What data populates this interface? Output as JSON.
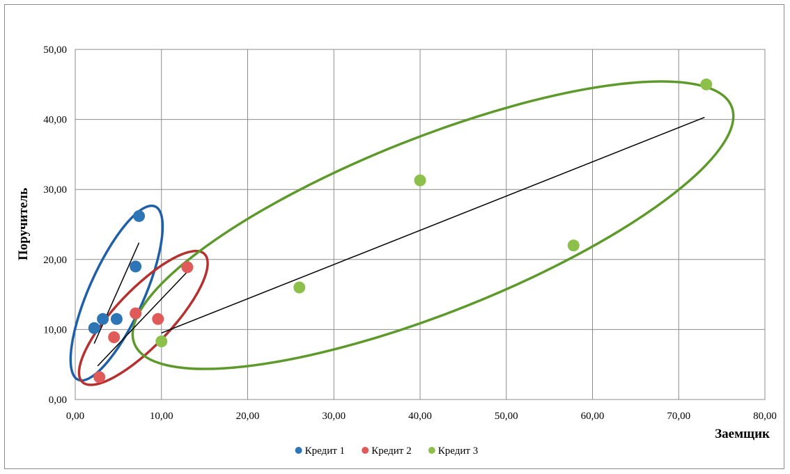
{
  "chart_data": {
    "type": "scatter",
    "title": "",
    "xlabel": "Заемщик",
    "ylabel": "Поручитель",
    "xlim": [
      0,
      80
    ],
    "ylim": [
      0,
      50
    ],
    "x_ticks": [
      "0,00",
      "10,00",
      "20,00",
      "30,00",
      "40,00",
      "50,00",
      "60,00",
      "70,00",
      "80,00"
    ],
    "y_ticks": [
      "0,00",
      "10,00",
      "20,00",
      "30,00",
      "40,00",
      "50,00"
    ],
    "x_tick_values": [
      0,
      10,
      20,
      30,
      40,
      50,
      60,
      70,
      80
    ],
    "y_tick_values": [
      0,
      10,
      20,
      30,
      40,
      50
    ],
    "grid": true,
    "legend_position": "bottom",
    "series": [
      {
        "name": "Кредит 1",
        "color": "#2e75b6",
        "points": [
          [
            2.2,
            10.2
          ],
          [
            3.2,
            11.5
          ],
          [
            4.8,
            11.5
          ],
          [
            7.0,
            19.0
          ],
          [
            7.4,
            26.2
          ]
        ],
        "trendline": [
          [
            2.2,
            8.0
          ],
          [
            7.4,
            22.4
          ]
        ],
        "ellipse_color": "#1f5fa8"
      },
      {
        "name": "Кредит 2",
        "color": "#e05a5a",
        "points": [
          [
            2.8,
            3.2
          ],
          [
            4.5,
            8.9
          ],
          [
            7.0,
            12.3
          ],
          [
            9.6,
            11.5
          ],
          [
            13.0,
            18.9
          ]
        ],
        "trendline": [
          [
            2.6,
            4.8
          ],
          [
            13.2,
            18.5
          ]
        ],
        "ellipse_color": "#b5302f"
      },
      {
        "name": "Кредит 3",
        "color": "#8cc04b",
        "points": [
          [
            10.0,
            8.3
          ],
          [
            26.0,
            16.0
          ],
          [
            40.0,
            31.3
          ],
          [
            57.8,
            22.0
          ],
          [
            73.2,
            45.0
          ]
        ],
        "trendline": [
          [
            10.0,
            9.5
          ],
          [
            73.0,
            40.3
          ]
        ],
        "ellipse_color": "#5d9a2b"
      }
    ]
  }
}
